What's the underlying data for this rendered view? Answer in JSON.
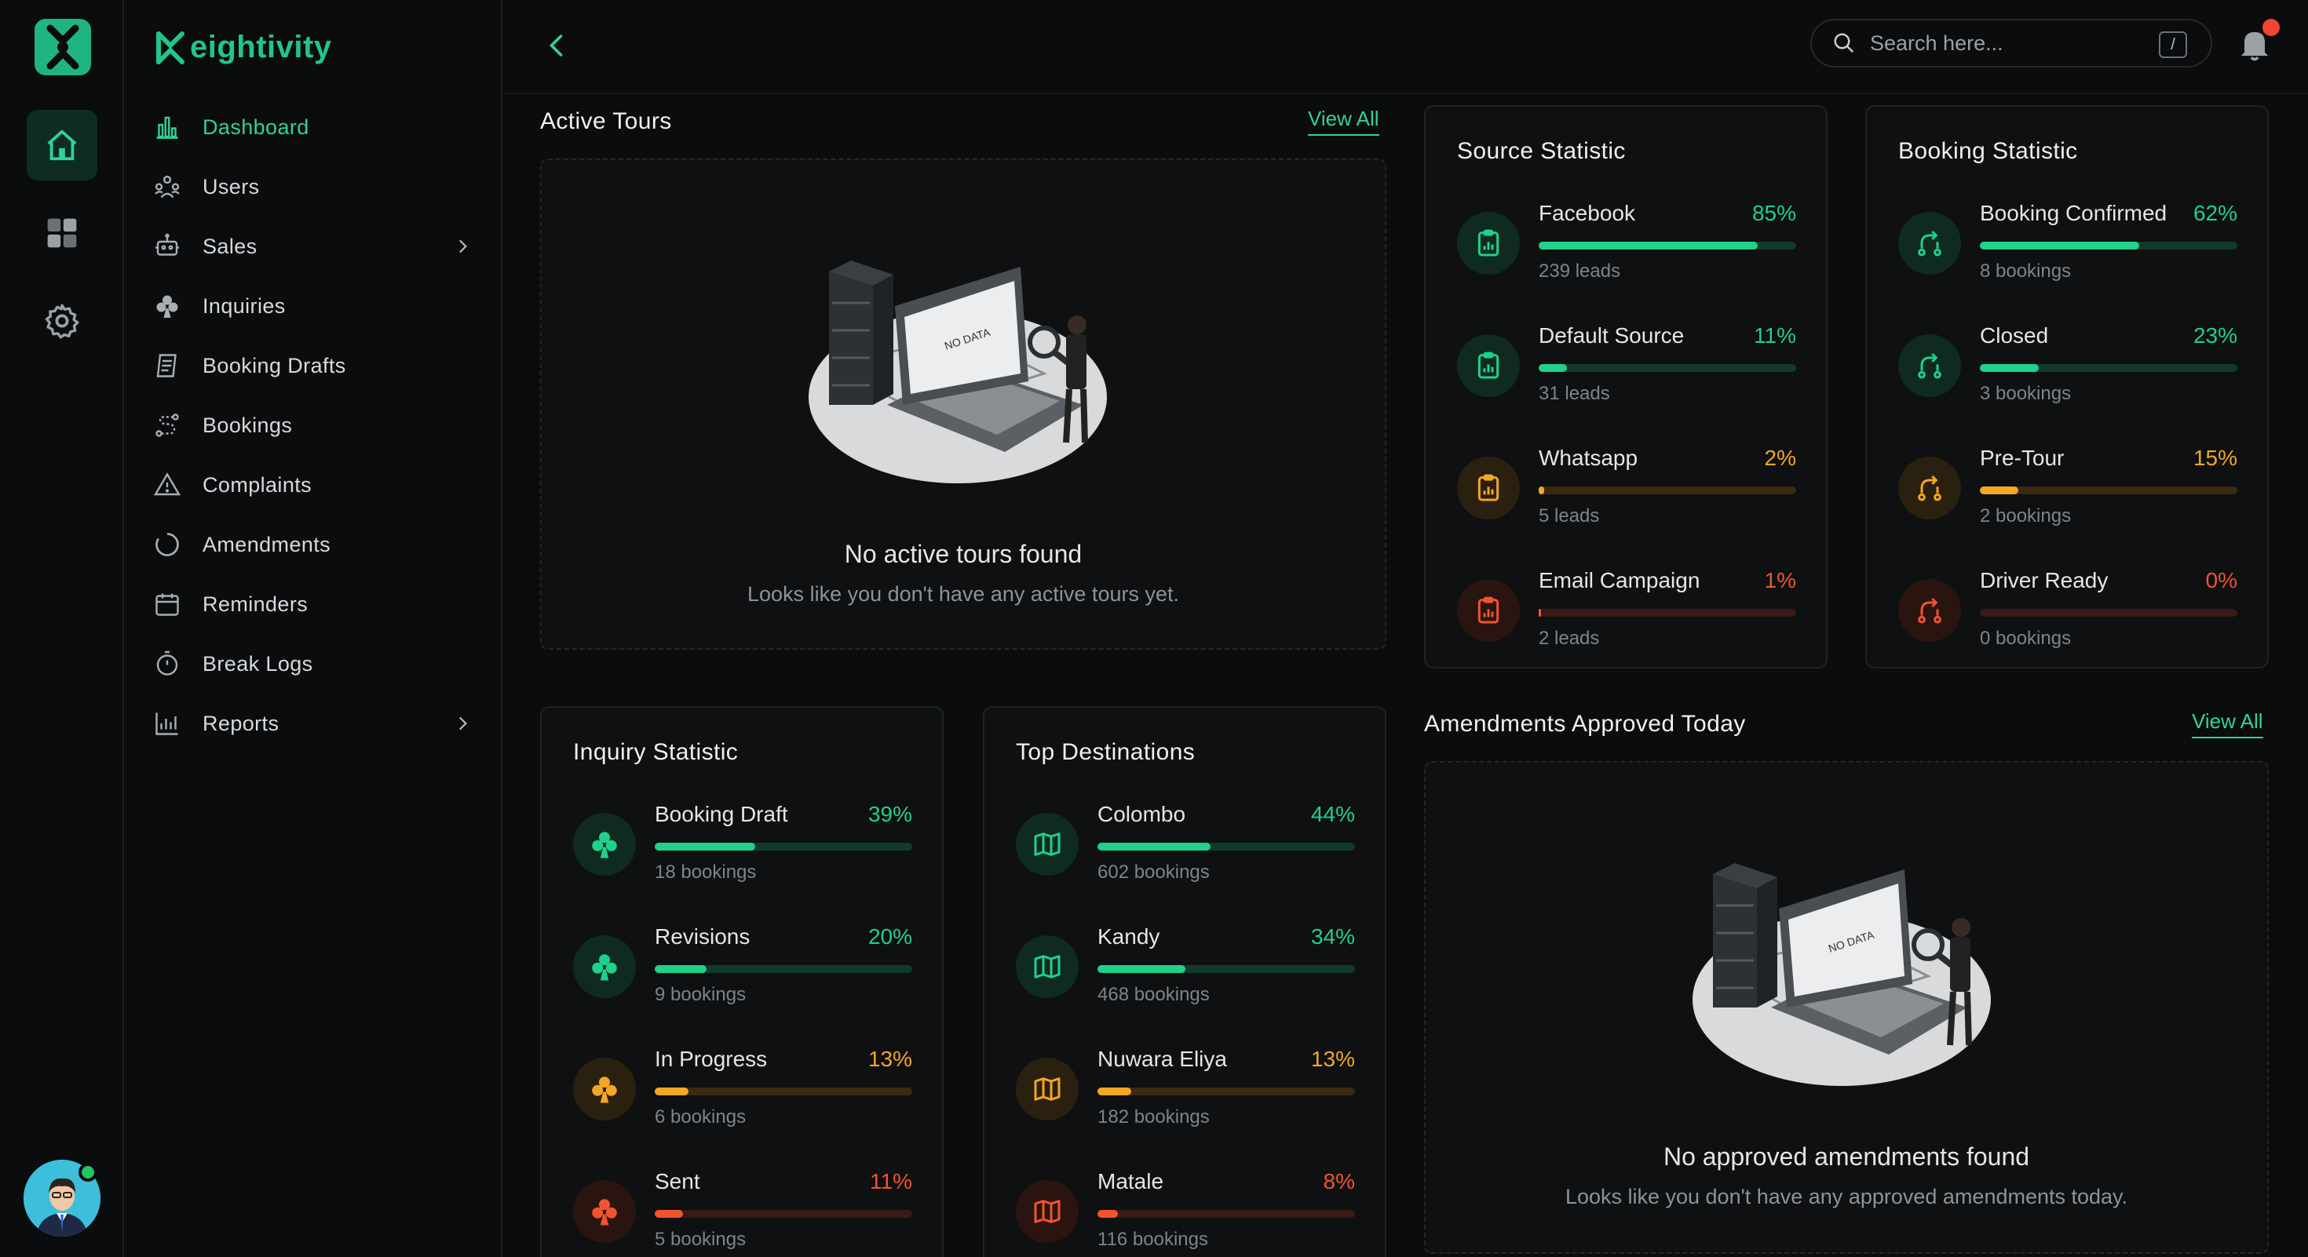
{
  "brand": {
    "name": "eightivity"
  },
  "colors": {
    "accent": "#22c58a",
    "green": "#1fd18a",
    "orange": "#f5a623",
    "red": "#f0452e"
  },
  "rail": {
    "items": [
      {
        "icon": "home-icon",
        "active": true
      },
      {
        "icon": "grid-icon",
        "active": false
      },
      {
        "icon": "gear-icon",
        "active": false
      }
    ]
  },
  "nav": {
    "items": [
      {
        "label": "Dashboard",
        "icon": "bar-chart-icon",
        "active": true
      },
      {
        "label": "Users",
        "icon": "users-icon"
      },
      {
        "label": "Sales",
        "icon": "robot-icon",
        "has_submenu": true
      },
      {
        "label": "Inquiries",
        "icon": "club-icon"
      },
      {
        "label": "Booking Drafts",
        "icon": "drafts-icon"
      },
      {
        "label": "Bookings",
        "icon": "route-icon"
      },
      {
        "label": "Complaints",
        "icon": "warning-icon"
      },
      {
        "label": "Amendments",
        "icon": "circle-progress-icon"
      },
      {
        "label": "Reminders",
        "icon": "calendar-icon"
      },
      {
        "label": "Break Logs",
        "icon": "stopwatch-icon"
      },
      {
        "label": "Reports",
        "icon": "reports-icon",
        "has_submenu": true
      }
    ]
  },
  "topbar": {
    "search_placeholder": "Search here...",
    "search_shortcut": "/"
  },
  "active_tours": {
    "title": "Active Tours",
    "view_all": "View All",
    "empty_title": "No active tours found",
    "empty_sub": "Looks like you don't have any active tours yet.",
    "illustration_text": "NO DATA"
  },
  "source_statistic": {
    "title": "Source Statistic",
    "rows": [
      {
        "name": "Facebook",
        "pct": "85%",
        "value": 85,
        "sub": "239 leads",
        "tone": "green",
        "icon": "clipboard-chart-icon"
      },
      {
        "name": "Default Source",
        "pct": "11%",
        "value": 11,
        "sub": "31 leads",
        "tone": "green",
        "icon": "clipboard-chart-icon"
      },
      {
        "name": "Whatsapp",
        "pct": "2%",
        "value": 2,
        "sub": "5 leads",
        "tone": "orange",
        "icon": "clipboard-chart-icon"
      },
      {
        "name": "Email Campaign",
        "pct": "1%",
        "value": 1,
        "sub": "2 leads",
        "tone": "red",
        "icon": "clipboard-chart-icon"
      }
    ]
  },
  "booking_statistic": {
    "title": "Booking Statistic",
    "rows": [
      {
        "name": "Booking Confirmed",
        "pct": "62%",
        "value": 62,
        "sub": "8 bookings",
        "tone": "green",
        "icon": "route-arrow-icon"
      },
      {
        "name": "Closed",
        "pct": "23%",
        "value": 23,
        "sub": "3 bookings",
        "tone": "green",
        "icon": "route-arrow-icon"
      },
      {
        "name": "Pre-Tour",
        "pct": "15%",
        "value": 15,
        "sub": "2 bookings",
        "tone": "orange",
        "icon": "route-arrow-icon"
      },
      {
        "name": "Driver Ready",
        "pct": "0%",
        "value": 0,
        "sub": "0 bookings",
        "tone": "red",
        "icon": "route-arrow-icon"
      }
    ]
  },
  "inquiry_statistic": {
    "title": "Inquiry Statistic",
    "rows": [
      {
        "name": "Booking Draft",
        "pct": "39%",
        "value": 39,
        "sub": "18 bookings",
        "tone": "green",
        "icon": "club-icon"
      },
      {
        "name": "Revisions",
        "pct": "20%",
        "value": 20,
        "sub": "9 bookings",
        "tone": "green",
        "icon": "club-icon"
      },
      {
        "name": "In Progress",
        "pct": "13%",
        "value": 13,
        "sub": "6 bookings",
        "tone": "orange",
        "icon": "club-icon"
      },
      {
        "name": "Sent",
        "pct": "11%",
        "value": 11,
        "sub": "5 bookings",
        "tone": "red",
        "icon": "club-icon"
      }
    ]
  },
  "top_destinations": {
    "title": "Top Destinations",
    "rows": [
      {
        "name": "Colombo",
        "pct": "44%",
        "value": 44,
        "sub": "602 bookings",
        "tone": "green",
        "icon": "map-icon"
      },
      {
        "name": "Kandy",
        "pct": "34%",
        "value": 34,
        "sub": "468 bookings",
        "tone": "green",
        "icon": "map-icon"
      },
      {
        "name": "Nuwara Eliya",
        "pct": "13%",
        "value": 13,
        "sub": "182 bookings",
        "tone": "orange",
        "icon": "map-icon"
      },
      {
        "name": "Matale",
        "pct": "8%",
        "value": 8,
        "sub": "116 bookings",
        "tone": "red",
        "icon": "map-icon"
      }
    ]
  },
  "amendments": {
    "title": "Amendments Approved Today",
    "view_all": "View All",
    "empty_title": "No approved amendments found",
    "empty_sub": "Looks like you don't have any approved amendments today.",
    "illustration_text": "NO DATA"
  }
}
